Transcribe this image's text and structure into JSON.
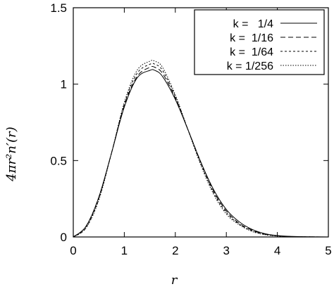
{
  "chart_data": {
    "type": "line",
    "xlabel": "r",
    "ylabel": "4πr²n′(r)",
    "xlim": [
      0,
      5
    ],
    "ylim": [
      0,
      1.5
    ],
    "x_ticks": [
      "0",
      "1",
      "2",
      "3",
      "4",
      "5"
    ],
    "y_ticks": [
      "0",
      "0.5",
      "1",
      "1.5"
    ],
    "x_tick_values": [
      0,
      1,
      2,
      3,
      4,
      5
    ],
    "y_tick_values": [
      0,
      0.5,
      1,
      1.5
    ],
    "grid": false,
    "legend_position": "top-right",
    "x": [
      0,
      0.25,
      0.5,
      0.75,
      1.0,
      1.25,
      1.5,
      1.6,
      1.75,
      2.0,
      2.25,
      2.5,
      2.75,
      3.0,
      3.25,
      3.5,
      3.75,
      4.0,
      4.25,
      4.5,
      4.75,
      5.0
    ],
    "series": [
      {
        "name": "k =   1/4",
        "dash": "none",
        "values": [
          0,
          0.07,
          0.26,
          0.55,
          0.85,
          1.04,
          1.09,
          1.09,
          1.05,
          0.9,
          0.7,
          0.49,
          0.31,
          0.18,
          0.1,
          0.05,
          0.022,
          0.009,
          0.004,
          0.0015,
          0.0005,
          0.0002
        ]
      },
      {
        "name": "k =  1/16",
        "dash": "7,4",
        "values": [
          0,
          0.07,
          0.26,
          0.55,
          0.86,
          1.05,
          1.11,
          1.11,
          1.07,
          0.91,
          0.7,
          0.49,
          0.3,
          0.17,
          0.09,
          0.045,
          0.019,
          0.008,
          0.003,
          0.001,
          0.0004,
          0.0001
        ]
      },
      {
        "name": "k =  1/64",
        "dash": "3,3",
        "values": [
          0,
          0.06,
          0.25,
          0.55,
          0.87,
          1.07,
          1.13,
          1.13,
          1.09,
          0.92,
          0.7,
          0.48,
          0.29,
          0.16,
          0.085,
          0.04,
          0.017,
          0.007,
          0.0025,
          0.001,
          0.0003,
          0.0001
        ]
      },
      {
        "name": "k = 1/256",
        "dash": "1.5,2",
        "values": [
          0,
          0.06,
          0.24,
          0.55,
          0.88,
          1.09,
          1.15,
          1.15,
          1.11,
          0.93,
          0.7,
          0.47,
          0.28,
          0.15,
          0.08,
          0.037,
          0.015,
          0.006,
          0.002,
          0.0008,
          0.0002,
          0.0001
        ]
      }
    ]
  }
}
